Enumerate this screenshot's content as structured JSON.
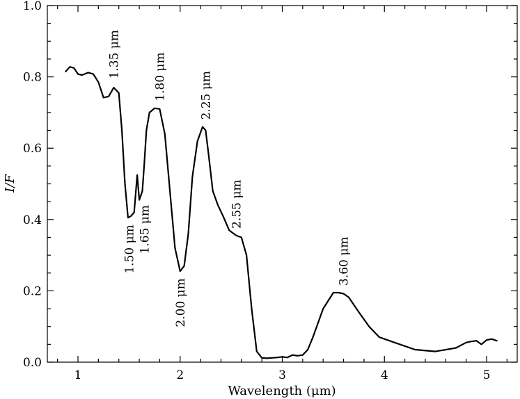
{
  "chart_data": {
    "type": "line",
    "title": "",
    "xlabel": "Wavelength (μm)",
    "ylabel": "I/F",
    "xlim": [
      0.7,
      5.3
    ],
    "ylim": [
      0.0,
      1.0
    ],
    "x_ticks": [
      1,
      2,
      3,
      4,
      5
    ],
    "y_ticks": [
      0.0,
      0.2,
      0.4,
      0.6,
      0.8,
      1.0
    ],
    "x_tick_labels": [
      "1",
      "2",
      "3",
      "4",
      "5"
    ],
    "y_tick_labels": [
      "0.0",
      "0.2",
      "0.4",
      "0.6",
      "0.8",
      "1.0"
    ],
    "grid": false,
    "series": [
      {
        "color": "#000000",
        "x": [
          0.88,
          0.92,
          0.96,
          1.0,
          1.04,
          1.1,
          1.15,
          1.2,
          1.25,
          1.3,
          1.35,
          1.4,
          1.43,
          1.46,
          1.49,
          1.52,
          1.55,
          1.58,
          1.6,
          1.63,
          1.65,
          1.67,
          1.7,
          1.75,
          1.8,
          1.85,
          1.9,
          1.95,
          2.0,
          2.04,
          2.08,
          2.12,
          2.17,
          2.22,
          2.25,
          2.28,
          2.32,
          2.37,
          2.42,
          2.48,
          2.55,
          2.6,
          2.65,
          2.7,
          2.75,
          2.8,
          2.85,
          2.9,
          2.95,
          3.0,
          3.05,
          3.1,
          3.15,
          3.2,
          3.25,
          3.3,
          3.4,
          3.5,
          3.55,
          3.6,
          3.65,
          3.75,
          3.85,
          3.95,
          4.1,
          4.3,
          4.5,
          4.7,
          4.8,
          4.85,
          4.9,
          4.95,
          5.0,
          5.05,
          5.1
        ],
        "y": [
          0.815,
          0.828,
          0.825,
          0.808,
          0.805,
          0.812,
          0.808,
          0.785,
          0.742,
          0.745,
          0.77,
          0.755,
          0.65,
          0.5,
          0.405,
          0.41,
          0.42,
          0.525,
          0.455,
          0.48,
          0.56,
          0.65,
          0.7,
          0.712,
          0.71,
          0.64,
          0.48,
          0.32,
          0.255,
          0.27,
          0.36,
          0.52,
          0.62,
          0.66,
          0.65,
          0.58,
          0.48,
          0.44,
          0.41,
          0.37,
          0.355,
          0.35,
          0.3,
          0.15,
          0.03,
          0.012,
          0.011,
          0.012,
          0.013,
          0.015,
          0.013,
          0.02,
          0.018,
          0.02,
          0.035,
          0.07,
          0.15,
          0.195,
          0.195,
          0.192,
          0.182,
          0.14,
          0.1,
          0.07,
          0.055,
          0.035,
          0.03,
          0.04,
          0.055,
          0.058,
          0.06,
          0.05,
          0.062,
          0.065,
          0.06
        ]
      }
    ],
    "annotations": [
      {
        "text": "1.35 μm",
        "x": 1.35,
        "y": 0.775
      },
      {
        "text": "1.50 μm",
        "x": 1.5,
        "y": 0.405
      },
      {
        "text": "1.65 μm",
        "x": 1.65,
        "y": 0.46
      },
      {
        "text": "1.80 μm",
        "x": 1.8,
        "y": 0.712
      },
      {
        "text": "2.00 μm",
        "x": 2.0,
        "y": 0.255
      },
      {
        "text": "2.25 μm",
        "x": 2.25,
        "y": 0.66
      },
      {
        "text": "2.55 μm",
        "x": 2.55,
        "y": 0.355
      },
      {
        "text": "3.60 μm",
        "x": 3.6,
        "y": 0.195
      }
    ]
  }
}
